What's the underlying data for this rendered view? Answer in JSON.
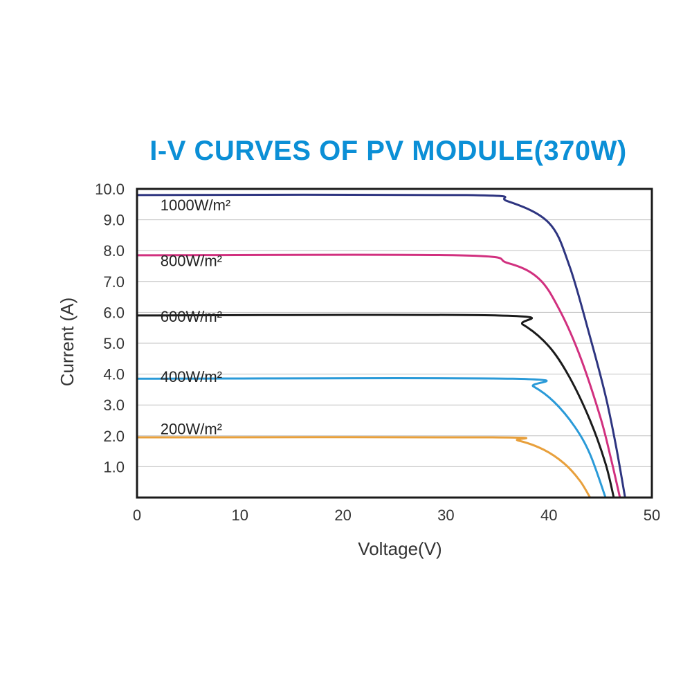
{
  "chart_data": {
    "type": "line",
    "title": "I-V CURVES OF PV MODULE(370W)",
    "xlabel": "Voltage(V)",
    "ylabel": "Current (A)",
    "xlim": [
      0,
      50
    ],
    "ylim": [
      0,
      10
    ],
    "x_ticks": [
      0,
      10,
      20,
      30,
      40,
      50
    ],
    "x_tick_labels": [
      "0",
      "10",
      "20",
      "30",
      "40",
      "50"
    ],
    "y_ticks": [
      1,
      2,
      3,
      4,
      5,
      6,
      7,
      8,
      9,
      10
    ],
    "y_tick_labels": [
      "1.0",
      "2.0",
      "3.0",
      "4.0",
      "5.0",
      "6.0",
      "7.0",
      "8.0",
      "9.0",
      "10.0"
    ],
    "grid": "horizontal",
    "series": [
      {
        "name": "1000W/m²",
        "color": "#2e3580",
        "isc": 9.8,
        "voc": 47.4,
        "knee_v": 32.0,
        "points": [
          [
            0,
            9.8
          ],
          [
            32,
            9.8
          ],
          [
            36,
            9.6
          ],
          [
            40,
            8.9
          ],
          [
            42,
            7.5
          ],
          [
            44,
            5.2
          ],
          [
            45.5,
            3.3
          ],
          [
            46.5,
            1.7
          ],
          [
            47.4,
            0
          ]
        ]
      },
      {
        "name": "800W/m²",
        "color": "#d1307f",
        "isc": 7.85,
        "voc": 46.9,
        "knee_v": 31.0,
        "points": [
          [
            0,
            7.85
          ],
          [
            31,
            7.85
          ],
          [
            36,
            7.6
          ],
          [
            39,
            7.1
          ],
          [
            41,
            6.1
          ],
          [
            43,
            4.6
          ],
          [
            45,
            2.6
          ],
          [
            46,
            1.3
          ],
          [
            46.9,
            0
          ]
        ]
      },
      {
        "name": "600W/m²",
        "color": "#1b1b1b",
        "isc": 5.9,
        "voc": 46.3,
        "knee_v": 35.0,
        "points": [
          [
            0,
            5.9
          ],
          [
            35,
            5.9
          ],
          [
            37.5,
            5.6
          ],
          [
            40,
            4.9
          ],
          [
            42,
            3.9
          ],
          [
            44,
            2.5
          ],
          [
            45.5,
            1.1
          ],
          [
            46.3,
            0
          ]
        ]
      },
      {
        "name": "400W/m²",
        "color": "#2a9ad8",
        "isc": 3.85,
        "voc": 45.5,
        "knee_v": 36.5,
        "points": [
          [
            0,
            3.85
          ],
          [
            36.5,
            3.85
          ],
          [
            38.5,
            3.6
          ],
          [
            40.5,
            3.1
          ],
          [
            42.5,
            2.3
          ],
          [
            44,
            1.4
          ],
          [
            45.5,
            0
          ]
        ]
      },
      {
        "name": "200W/m²",
        "color": "#e8a03c",
        "isc": 1.95,
        "voc": 44.0,
        "knee_v": 34.5,
        "points": [
          [
            0,
            1.95
          ],
          [
            34.5,
            1.95
          ],
          [
            37,
            1.85
          ],
          [
            39.5,
            1.55
          ],
          [
            41.5,
            1.1
          ],
          [
            43,
            0.55
          ],
          [
            44,
            0
          ]
        ]
      }
    ],
    "curve_labels": [
      {
        "text": "1000W/m²",
        "series": "1000W/m²",
        "anchor_x": 2,
        "anchor_y": 9.3
      },
      {
        "text": "800W/m²",
        "series": "800W/m²",
        "anchor_x": 2,
        "anchor_y": 7.5
      },
      {
        "text": "600W/m²",
        "series": "600W/m²",
        "anchor_x": 2,
        "anchor_y": 5.7
      },
      {
        "text": "400W/m²",
        "series": "400W/m²",
        "anchor_x": 2,
        "anchor_y": 3.75
      },
      {
        "text": "200W/m²",
        "series": "200W/m²",
        "anchor_x": 2,
        "anchor_y": 2.05
      }
    ]
  },
  "colors": {
    "title": "#0b8fd6",
    "frame": "#1a1a1a",
    "grid": "#c0c0c0"
  }
}
